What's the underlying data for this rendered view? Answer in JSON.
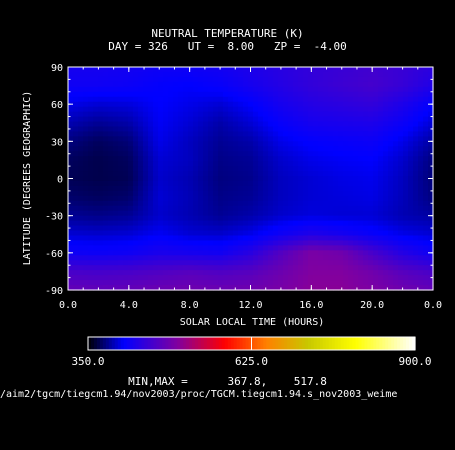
{
  "chart_data": {
    "type": "heatmap",
    "title": "NEUTRAL TEMPERATURE (K)",
    "subtitle": {
      "day_label": "DAY =",
      "day": "326",
      "ut_label": "UT =",
      "ut": "8.00",
      "zp_label": "ZP =",
      "zp": "-4.00"
    },
    "xlabel": "SOLAR LOCAL TIME (HOURS)",
    "ylabel": "LATITUDE (DEGREES GEOGRAPHIC)",
    "x_ticks": [
      "0.0",
      "4.0",
      "8.0",
      "12.0",
      "16.0",
      "20.0",
      "0.0"
    ],
    "x_tick_hours": [
      0,
      4,
      8,
      12,
      16,
      20,
      24
    ],
    "xlim": [
      0,
      24
    ],
    "y_ticks": [
      "90",
      "60",
      "30",
      "0",
      "-30",
      "-60",
      "-90"
    ],
    "y_tick_values": [
      90,
      60,
      30,
      0,
      -30,
      -60,
      -90
    ],
    "ylim": [
      -90,
      90
    ],
    "colorbar": {
      "min_label": "350.0",
      "mid_label": "625.0",
      "max_label": "900.0",
      "range": [
        350,
        900
      ],
      "stops": [
        {
          "v": 350,
          "c": "#000000"
        },
        {
          "v": 410,
          "c": "#0000ff"
        },
        {
          "v": 500,
          "c": "#8000a0"
        },
        {
          "v": 580,
          "c": "#ff0000"
        },
        {
          "v": 650,
          "c": "#ff8000"
        },
        {
          "v": 720,
          "c": "#c8c800"
        },
        {
          "v": 800,
          "c": "#ffff00"
        },
        {
          "v": 900,
          "c": "#ffffff"
        }
      ]
    },
    "field": {
      "x_hours": [
        0,
        2,
        4,
        6,
        8,
        10,
        12,
        14,
        16,
        18,
        20,
        22,
        24
      ],
      "latitudes": [
        90,
        75,
        60,
        45,
        30,
        15,
        0,
        -15,
        -30,
        -45,
        -60,
        -75,
        -90
      ],
      "values": [
        [
          425,
          425,
          423,
          420,
          420,
          423,
          430,
          438,
          445,
          450,
          455,
          450,
          440
        ],
        [
          420,
          420,
          418,
          412,
          410,
          415,
          425,
          435,
          445,
          452,
          458,
          448,
          432
        ],
        [
          405,
          400,
          402,
          410,
          405,
          400,
          410,
          425,
          435,
          440,
          445,
          430,
          412
        ],
        [
          392,
          385,
          390,
          408,
          400,
          390,
          400,
          415,
          425,
          428,
          430,
          418,
          400
        ],
        [
          380,
          372,
          378,
          405,
          395,
          385,
          390,
          405,
          412,
          415,
          418,
          405,
          388
        ],
        [
          372,
          368,
          372,
          400,
          395,
          382,
          385,
          398,
          405,
          408,
          410,
          398,
          380
        ],
        [
          370,
          368,
          370,
          398,
          392,
          380,
          383,
          395,
          400,
          404,
          406,
          395,
          378
        ],
        [
          375,
          372,
          375,
          400,
          393,
          382,
          385,
          395,
          400,
          402,
          404,
          394,
          380
        ],
        [
          385,
          382,
          385,
          398,
          392,
          385,
          390,
          398,
          402,
          400,
          400,
          392,
          388
        ],
        [
          400,
          398,
          400,
          408,
          400,
          398,
          405,
          420,
          432,
          425,
          415,
          405,
          400
        ],
        [
          420,
          418,
          420,
          428,
          425,
          422,
          438,
          468,
          495,
          488,
          460,
          435,
          420
        ],
        [
          460,
          458,
          460,
          465,
          470,
          465,
          470,
          485,
          500,
          500,
          488,
          470,
          460
        ],
        [
          480,
          478,
          480,
          485,
          488,
          485,
          488,
          495,
          505,
          505,
          498,
          488,
          480
        ]
      ]
    }
  },
  "stats": {
    "label": "MIN,MAX =",
    "min": "367.8,",
    "max": "517.8"
  },
  "file_path": "/aim2/tgcm/tiegcm1.94/nov2003/proc/TGCM.tiegcm1.94.s_nov2003_weime"
}
